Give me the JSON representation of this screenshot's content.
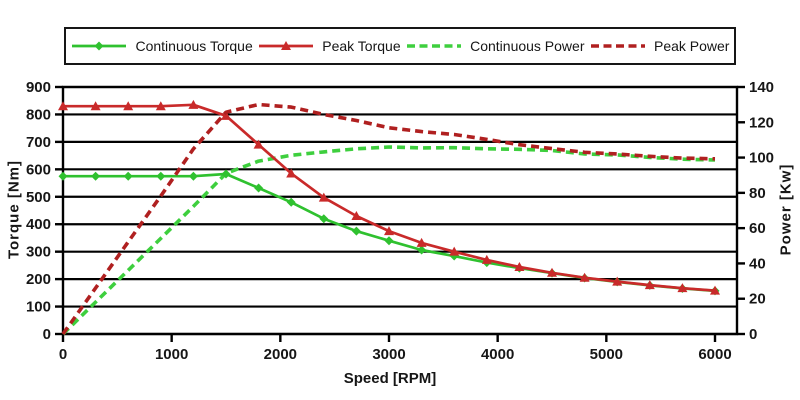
{
  "chart_data": {
    "type": "line",
    "title": "",
    "legend_position": "top",
    "grid": "horizontal",
    "grid_color": "#000000",
    "background": "#ffffff",
    "x_axis": {
      "label": "Speed [RPM]",
      "min": 0,
      "max": 6000,
      "ticks": [
        0,
        1000,
        2000,
        3000,
        4000,
        5000,
        6000
      ]
    },
    "y_left_axis": {
      "label": "Torque [Nm]",
      "min": 0,
      "max": 900,
      "ticks": [
        0,
        100,
        200,
        300,
        400,
        500,
        600,
        700,
        800,
        900
      ]
    },
    "y_right_axis": {
      "label": "Power [Kw]",
      "min": 0,
      "max": 140,
      "ticks": [
        0,
        20,
        40,
        60,
        80,
        100,
        120,
        140
      ]
    },
    "rpm": [
      0,
      300,
      600,
      900,
      1200,
      1500,
      1800,
      2100,
      2400,
      2700,
      3000,
      3300,
      3600,
      3900,
      4200,
      4500,
      4800,
      5100,
      5400,
      5700,
      6000
    ],
    "series": [
      {
        "name": "Continuous Torque",
        "axis": "left",
        "style": "solid",
        "marker": "diamond",
        "color": "#2fc12f",
        "values": [
          575,
          575,
          575,
          575,
          575,
          583,
          532,
          480,
          420,
          375,
          340,
          306,
          284,
          260,
          240,
          222,
          204,
          190,
          177,
          166,
          157
        ]
      },
      {
        "name": "Peak Torque",
        "axis": "left",
        "style": "solid",
        "marker": "triangle",
        "color": "#c92a2a",
        "values": [
          830,
          830,
          830,
          830,
          835,
          795,
          690,
          585,
          497,
          430,
          375,
          332,
          300,
          270,
          244,
          223,
          205,
          191,
          178,
          167,
          158
        ]
      },
      {
        "name": "Continuous Power",
        "axis": "right",
        "style": "dashed",
        "marker": "none",
        "color": "#3ecf3e",
        "values": [
          0,
          18.1,
          36.1,
          54.2,
          72.3,
          91.0,
          98.0,
          101.3,
          103.2,
          105.0,
          106.0,
          105.5,
          105.6,
          105.0,
          104.7,
          104.0,
          102.0,
          101.5,
          100.1,
          99.1,
          98.6
        ]
      },
      {
        "name": "Peak Power",
        "axis": "right",
        "style": "dashed",
        "marker": "none",
        "color": "#b02020",
        "values": [
          0,
          26.1,
          52.2,
          78.2,
          104.9,
          125.7,
          130.1,
          128.6,
          124.4,
          121.0,
          116.9,
          114.7,
          113.1,
          110.3,
          107.3,
          105.1,
          103.0,
          102.0,
          100.7,
          99.7,
          99.3
        ]
      }
    ]
  }
}
